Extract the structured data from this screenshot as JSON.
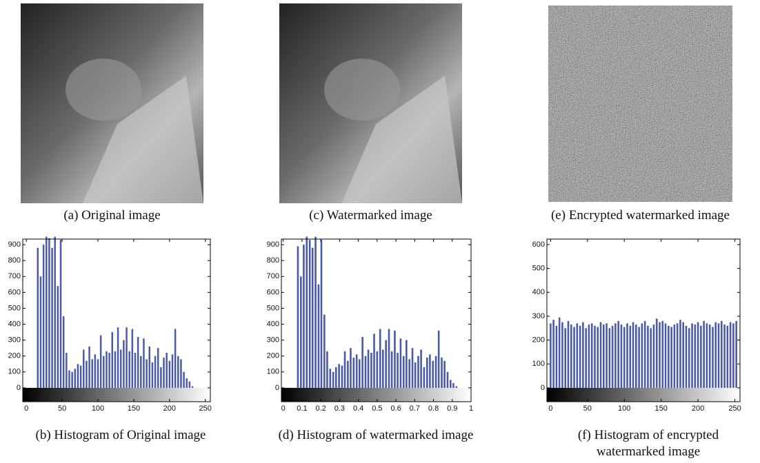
{
  "images": [
    {
      "caption": "(a) Original image"
    },
    {
      "caption": "(c) Watermarked image"
    },
    {
      "caption": "(e) Encrypted watermarked image"
    }
  ],
  "chart_data": [
    {
      "type": "histogram",
      "title": "(b) Histogram of Original image",
      "color": "#4a5aa8",
      "xlim": [
        -5,
        257
      ],
      "ylim": [
        -87,
        935
      ],
      "xticks": [
        0,
        50,
        100,
        150,
        200,
        250
      ],
      "yticks": [
        0,
        100,
        200,
        300,
        400,
        500,
        600,
        700,
        800,
        900
      ],
      "x": [
        0,
        4,
        8,
        12,
        16,
        20,
        24,
        28,
        32,
        36,
        40,
        44,
        48,
        52,
        56,
        60,
        64,
        68,
        72,
        76,
        80,
        84,
        88,
        92,
        96,
        100,
        104,
        108,
        112,
        116,
        120,
        124,
        128,
        132,
        136,
        140,
        144,
        148,
        152,
        156,
        160,
        164,
        168,
        172,
        176,
        180,
        184,
        188,
        192,
        196,
        200,
        204,
        208,
        212,
        216,
        220,
        224,
        228,
        232,
        236,
        240,
        244,
        248,
        252
      ],
      "values": [
        0,
        0,
        0,
        0,
        880,
        700,
        900,
        950,
        940,
        880,
        950,
        640,
        930,
        450,
        220,
        110,
        100,
        120,
        150,
        140,
        240,
        170,
        260,
        180,
        210,
        180,
        330,
        200,
        230,
        220,
        350,
        230,
        380,
        240,
        300,
        380,
        230,
        370,
        220,
        320,
        200,
        310,
        180,
        260,
        160,
        200,
        250,
        130,
        190,
        220,
        170,
        210,
        370,
        200,
        180,
        100,
        60,
        40,
        10,
        0,
        0,
        0,
        0,
        0
      ]
    },
    {
      "type": "histogram",
      "title": "(d) Histogram of watermarked image",
      "color": "#4a5aa8",
      "xlim": [
        -0.01,
        1
      ],
      "ylim": [
        -87,
        935
      ],
      "xticks": [
        0,
        0.1,
        0.2,
        0.3,
        0.4,
        0.5,
        0.6,
        0.7,
        0.8,
        0.9,
        1
      ],
      "yticks": [
        0,
        100,
        200,
        300,
        400,
        500,
        600,
        700,
        800,
        900
      ],
      "x": [
        0,
        0.016,
        0.031,
        0.047,
        0.063,
        0.078,
        0.094,
        0.109,
        0.125,
        0.141,
        0.156,
        0.172,
        0.188,
        0.203,
        0.219,
        0.234,
        0.25,
        0.266,
        0.281,
        0.297,
        0.313,
        0.328,
        0.344,
        0.359,
        0.375,
        0.391,
        0.406,
        0.422,
        0.438,
        0.453,
        0.469,
        0.484,
        0.5,
        0.516,
        0.531,
        0.547,
        0.563,
        0.578,
        0.594,
        0.609,
        0.625,
        0.641,
        0.656,
        0.672,
        0.688,
        0.703,
        0.719,
        0.734,
        0.75,
        0.766,
        0.781,
        0.797,
        0.813,
        0.828,
        0.844,
        0.859,
        0.875,
        0.891,
        0.906,
        0.922,
        0.938,
        0.953,
        0.969,
        0.984
      ],
      "values": [
        0,
        0,
        0,
        0,
        0,
        890,
        700,
        900,
        950,
        930,
        880,
        950,
        650,
        930,
        460,
        230,
        120,
        100,
        130,
        150,
        140,
        230,
        170,
        250,
        190,
        210,
        180,
        320,
        200,
        240,
        220,
        340,
        230,
        370,
        240,
        300,
        370,
        230,
        360,
        220,
        310,
        200,
        300,
        180,
        250,
        160,
        200,
        240,
        130,
        190,
        210,
        170,
        200,
        360,
        190,
        170,
        100,
        50,
        30,
        10,
        0,
        0,
        0,
        0
      ]
    },
    {
      "type": "histogram",
      "title": "(f) Histogram of encrypted watermarked image",
      "color": "#4a5aa8",
      "xlim": [
        -5,
        257
      ],
      "ylim": [
        -58,
        623
      ],
      "xticks": [
        0,
        50,
        100,
        150,
        200,
        250
      ],
      "yticks": [
        0,
        100,
        200,
        300,
        400,
        500,
        600
      ],
      "x": [
        0,
        4,
        8,
        12,
        16,
        20,
        24,
        28,
        32,
        36,
        40,
        44,
        48,
        52,
        56,
        60,
        64,
        68,
        72,
        76,
        80,
        84,
        88,
        92,
        96,
        100,
        104,
        108,
        112,
        116,
        120,
        124,
        128,
        132,
        136,
        140,
        144,
        148,
        152,
        156,
        160,
        164,
        168,
        172,
        176,
        180,
        184,
        188,
        192,
        196,
        200,
        204,
        208,
        212,
        216,
        220,
        224,
        228,
        232,
        236,
        240,
        244,
        248,
        252
      ],
      "values": [
        270,
        285,
        260,
        295,
        275,
        250,
        280,
        265,
        255,
        270,
        260,
        275,
        250,
        265,
        270,
        260,
        255,
        275,
        265,
        270,
        250,
        260,
        270,
        280,
        265,
        255,
        270,
        260,
        275,
        265,
        255,
        270,
        280,
        260,
        250,
        265,
        290,
        275,
        280,
        270,
        260,
        255,
        265,
        270,
        285,
        275,
        260,
        250,
        270,
        265,
        275,
        260,
        280,
        270,
        265,
        255,
        275,
        270,
        280,
        265,
        260,
        275,
        270,
        280
      ]
    }
  ]
}
